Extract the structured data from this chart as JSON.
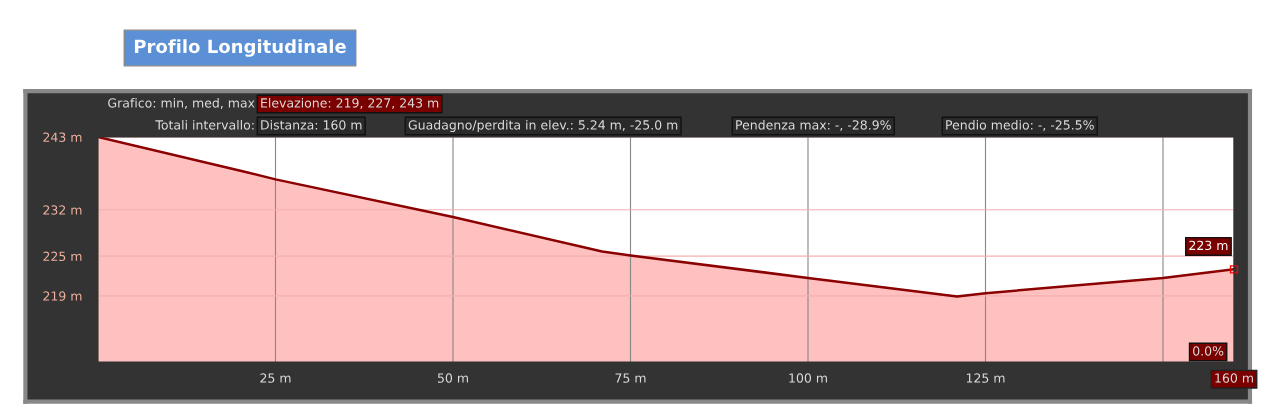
{
  "chart_data": {
    "type": "area",
    "title": "Profilo Longitudinale",
    "x": [
      0,
      20.5,
      25,
      50,
      71,
      75,
      100,
      121,
      125,
      150,
      160
    ],
    "series": [
      {
        "color": "#8b0000",
        "values": [
          243,
          237.8,
          236.6,
          230.9,
          225.7,
          225.1,
          221.7,
          218.9,
          219.4,
          221.7,
          223
        ]
      }
    ],
    "xlim": [
      0,
      160
    ],
    "xticks": [
      {
        "value": 25,
        "label": "25 m"
      },
      {
        "value": 50,
        "label": "50 m"
      },
      {
        "value": 75,
        "label": "75 m"
      },
      {
        "value": 100,
        "label": "100 m"
      },
      {
        "value": 125,
        "label": "125 m"
      },
      {
        "value": 150,
        "label": null
      },
      {
        "value": 160,
        "label": "160 m"
      }
    ],
    "ylim": [
      209,
      243
    ],
    "yticks": [
      {
        "value": 219,
        "label": "219 m"
      },
      {
        "value": 225,
        "label": "225 m"
      },
      {
        "value": 232,
        "label": "232 m"
      },
      {
        "value": 243,
        "label": "243 m"
      }
    ],
    "grid": true,
    "annotations": [
      "Grafico: min, med, max",
      "Elevazione: 219, 227, 243 m",
      "Totali intervallo:",
      "Distanza: 160 m",
      "Guadagno/perdita in elev.: 5.24 m, -25.0 m",
      "Pendenza max: -, -28.9%",
      "Pendio medio: -, -25.5%",
      {
        "text": "223 m",
        "x": 160,
        "y": 223
      },
      "0.0%"
    ]
  }
}
